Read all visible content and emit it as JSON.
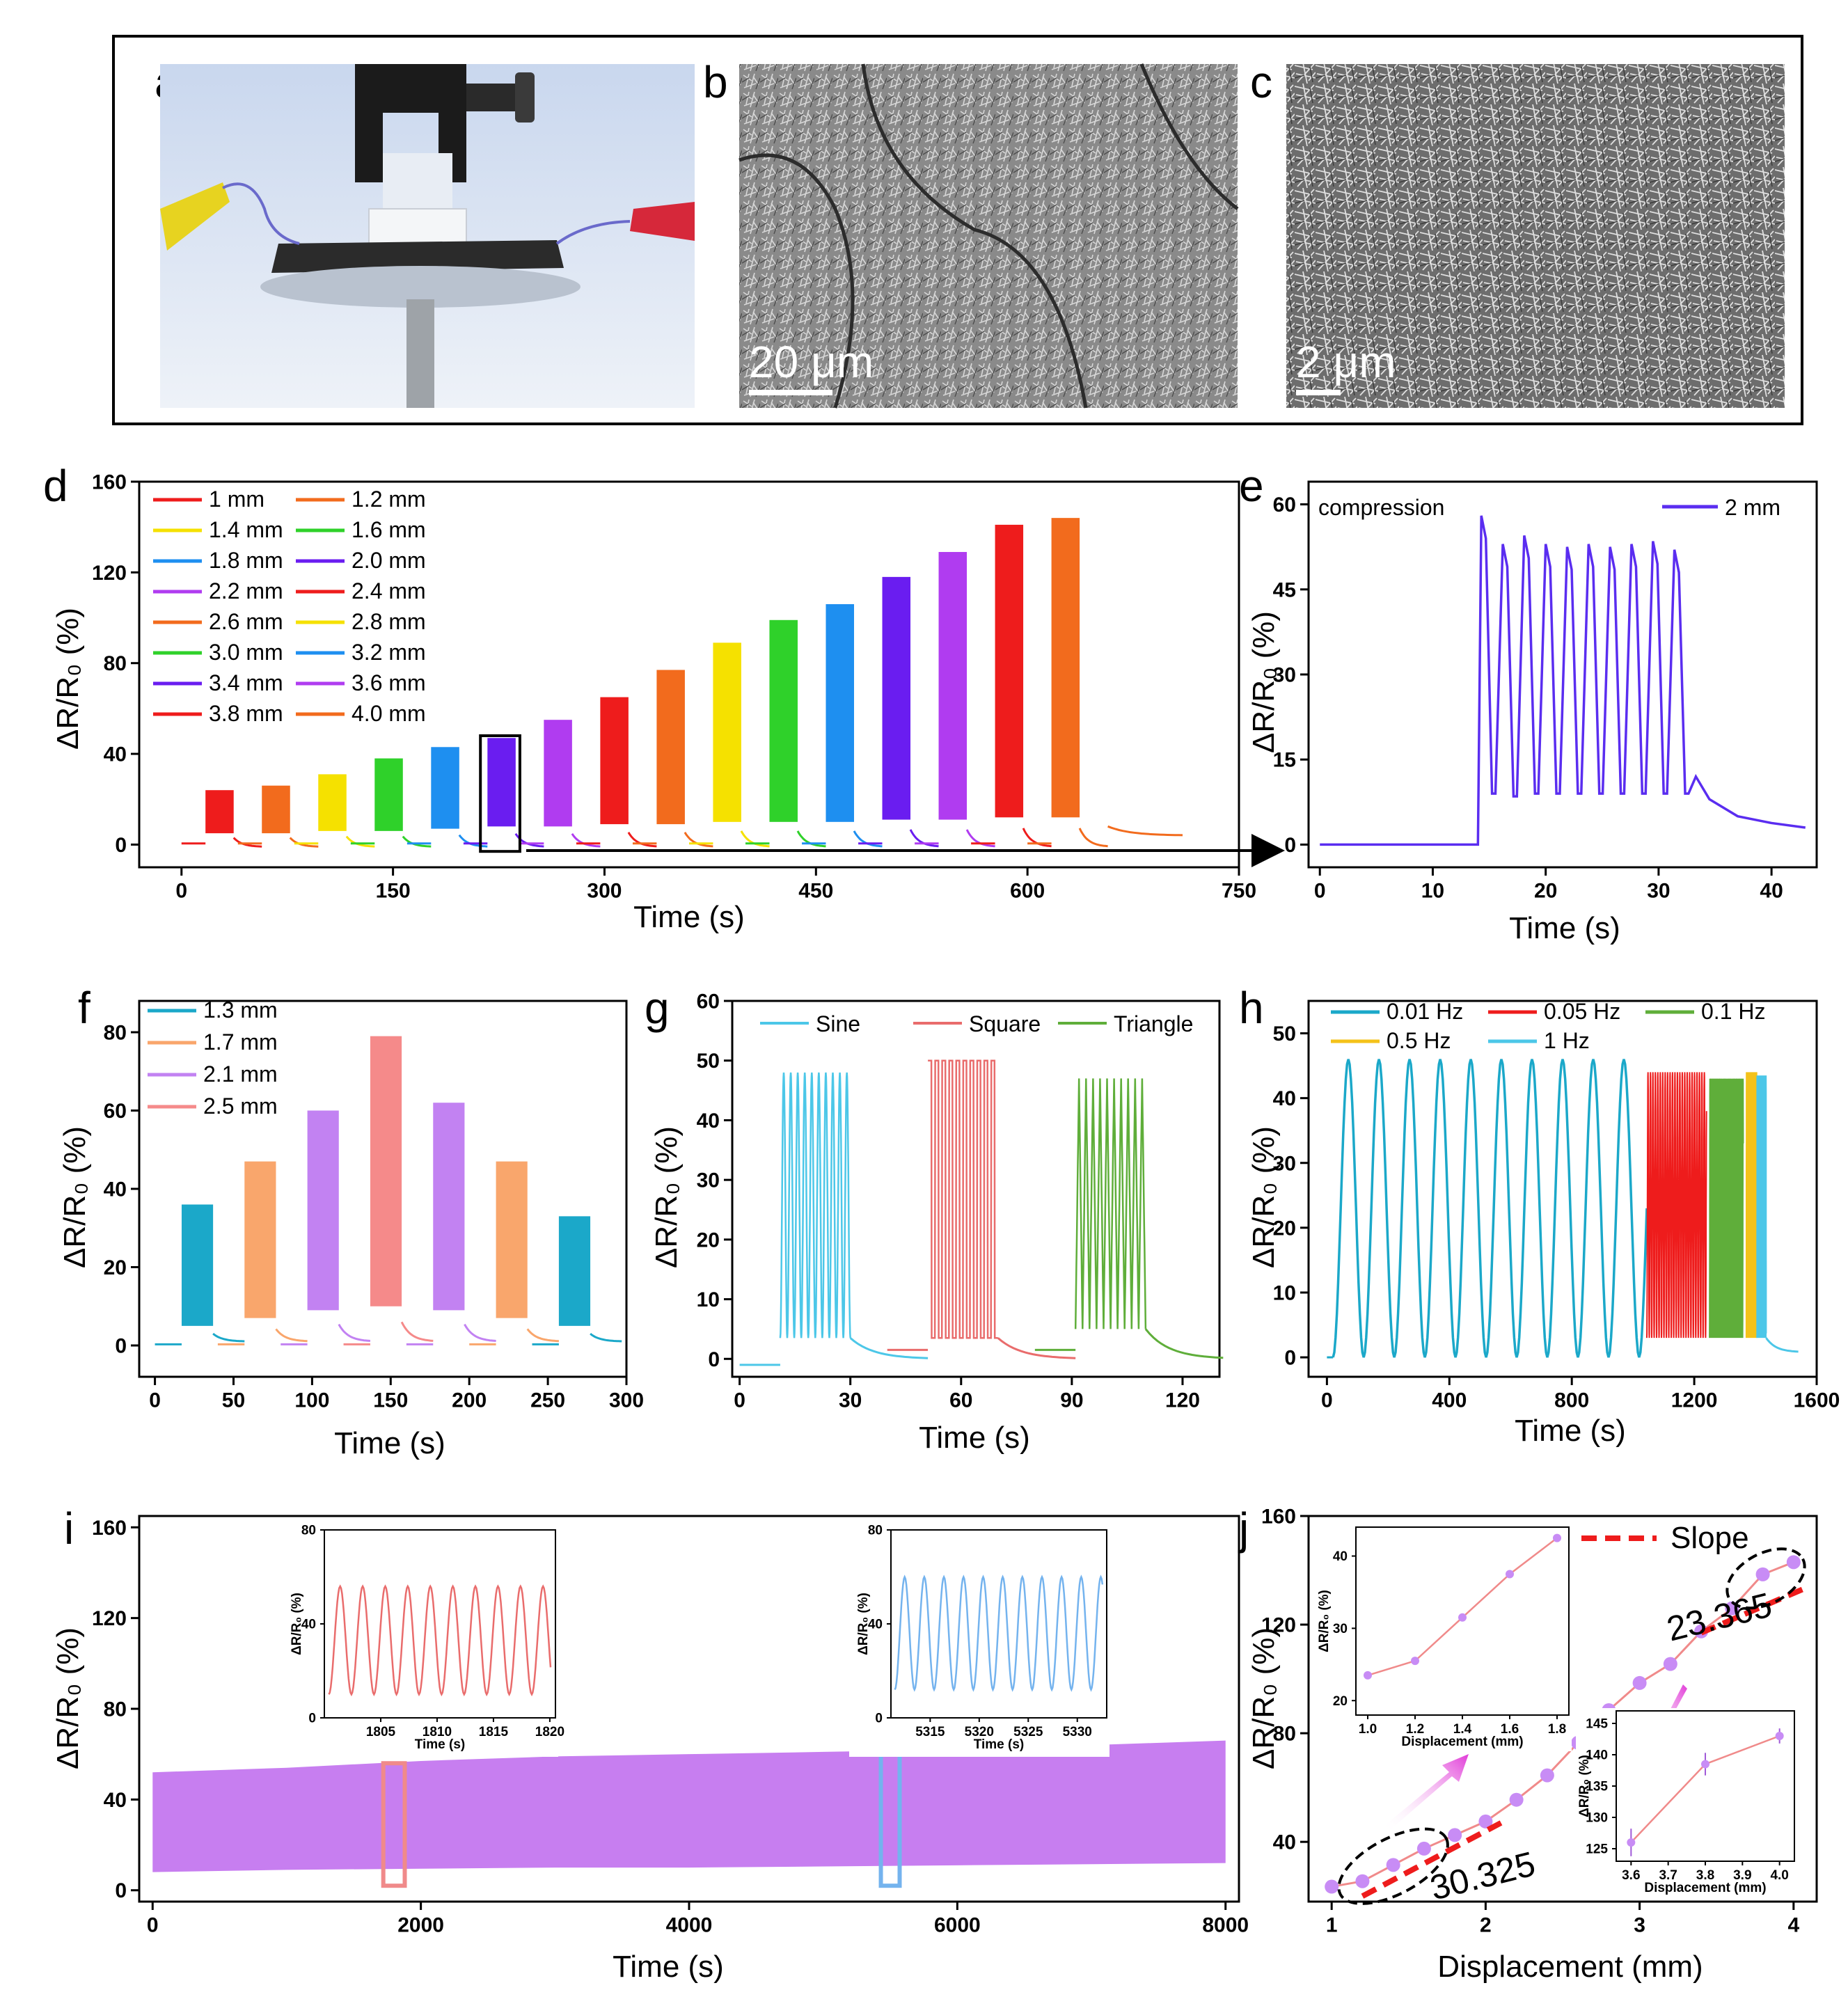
{
  "figure": {
    "panels": {
      "a": "a",
      "b": "b",
      "c": "c",
      "d": "d",
      "e": "e",
      "f": "f",
      "g": "g",
      "h": "h",
      "i": "i",
      "j": "j"
    },
    "scale_b": "20 μm",
    "scale_c": "2 μm",
    "ylabel": "ΔR/R₀ (%)",
    "colors": {
      "red": "#ee1c1c",
      "orange": "#f26b1d",
      "yellow": "#f5e100",
      "green": "#2fd12a",
      "blue": "#1e8ff0",
      "purple": "#6a1df0",
      "violet": "#b03cf0",
      "teal": "#1ba8c9",
      "salmon": "#f58a8a",
      "peach": "#f9a66c",
      "lavender": "#c282f2",
      "sky": "#4cc7e8",
      "olive": "#5fae3a",
      "gold": "#f4c21a",
      "inkblue": "#5a2df0",
      "lilac": "#c88cf5",
      "pink": "#e96c6c",
      "lightblue": "#74b3ee"
    }
  },
  "chart_data": [
    {
      "id": "d",
      "type": "line",
      "xlabel": "Time (s)",
      "ylabel": "ΔR/R₀ (%)",
      "xlim": [
        -30,
        750
      ],
      "ylim": [
        -10,
        160
      ],
      "xticks": [
        0,
        150,
        300,
        450,
        600,
        750
      ],
      "yticks": [
        0,
        40,
        80,
        120,
        160
      ],
      "legend": [
        "1 mm",
        "1.2 mm",
        "1.4 mm",
        "1.6 mm",
        "1.8 mm",
        "2.0 mm",
        "2.2 mm",
        "2.4 mm",
        "2.6 mm",
        "2.8 mm",
        "3.0 mm",
        "3.2 mm",
        "3.4 mm",
        "3.6 mm",
        "3.8 mm",
        "4.0 mm"
      ],
      "series_colors": [
        "red",
        "orange",
        "yellow",
        "green",
        "blue",
        "purple",
        "violet",
        "red",
        "orange",
        "yellow",
        "green",
        "blue",
        "purple",
        "violet",
        "red",
        "orange"
      ],
      "segment_start_s": [
        17,
        57,
        97,
        137,
        177,
        217,
        257,
        297,
        337,
        377,
        417,
        457,
        497,
        537,
        577,
        617
      ],
      "segment_peak": [
        24,
        26,
        31,
        38,
        43,
        47,
        55,
        65,
        77,
        89,
        99,
        106,
        118,
        129,
        141,
        144
      ],
      "segment_base": [
        5,
        5,
        6,
        6,
        7,
        8,
        8,
        9,
        9,
        10,
        10,
        10,
        11,
        11,
        12,
        12
      ]
    },
    {
      "id": "e",
      "type": "line",
      "legend_label": "2 mm",
      "annotation": "compression",
      "xlabel": "Time (s)",
      "ylabel": "ΔR/R₀ (%)",
      "xlim": [
        -1,
        44
      ],
      "ylim": [
        -4,
        64
      ],
      "xticks": [
        0,
        10,
        20,
        30,
        40
      ],
      "yticks": [
        0,
        15,
        30,
        45,
        60
      ],
      "cycle_peaks": [
        58,
        53,
        54.5,
        53,
        52.5,
        53,
        52.5,
        53,
        53.5,
        52
      ],
      "cycle_troughs": [
        9,
        8.5,
        9,
        9,
        9,
        9,
        9,
        9,
        9,
        9
      ]
    },
    {
      "id": "f",
      "type": "line",
      "xlabel": "Time (s)",
      "ylabel": "ΔR/R₀ (%)",
      "xlim": [
        -10,
        300
      ],
      "ylim": [
        -8,
        88
      ],
      "xticks": [
        0,
        50,
        100,
        150,
        200,
        250,
        300
      ],
      "yticks": [
        0,
        20,
        40,
        60,
        80
      ],
      "legend": [
        "1.3 mm",
        "1.7 mm",
        "2.1 mm",
        "2.5 mm"
      ],
      "segment_start_s": [
        17,
        57,
        97,
        137,
        177,
        217,
        257
      ],
      "segment_peak": [
        36,
        47,
        60,
        79,
        62,
        47,
        33
      ],
      "segment_base": [
        5,
        7,
        9,
        10,
        9,
        7,
        5
      ],
      "segment_colors": [
        "teal",
        "peach",
        "lavender",
        "salmon",
        "lavender",
        "peach",
        "teal"
      ]
    },
    {
      "id": "g",
      "type": "line",
      "xlabel": "Time (s)",
      "ylabel": "ΔR/R₀ (%)",
      "xlim": [
        -2,
        130
      ],
      "ylim": [
        -3,
        60
      ],
      "xticks": [
        0,
        30,
        60,
        90,
        120
      ],
      "yticks": [
        0,
        10,
        20,
        30,
        40,
        50,
        60
      ],
      "legend": [
        "Sine",
        "Square",
        "Triangle"
      ],
      "segment_start_s": [
        11,
        51,
        91
      ],
      "segment_peak": [
        48,
        50,
        47
      ],
      "segment_base": [
        3.5,
        3.5,
        5
      ]
    },
    {
      "id": "h",
      "type": "line",
      "xlabel": "Time (s)",
      "ylabel": "ΔR/R₀ (%)",
      "xlim": [
        -60,
        1600
      ],
      "ylim": [
        -3,
        55
      ],
      "xticks": [
        0,
        400,
        800,
        1200,
        1600
      ],
      "yticks": [
        0,
        10,
        20,
        30,
        40,
        50
      ],
      "legend": [
        "0.01 Hz",
        "0.05 Hz",
        "0.1 Hz",
        "0.5 Hz",
        "1 Hz"
      ],
      "segments_s": [
        [
          20,
          1045
        ],
        [
          1045,
          1240
        ],
        [
          1250,
          1360
        ],
        [
          1370,
          1405
        ],
        [
          1405,
          1435
        ]
      ],
      "segment_peak": [
        46,
        44,
        43,
        44,
        43.5
      ]
    },
    {
      "id": "i",
      "type": "area",
      "xlabel": "Time (s)",
      "ylabel": "ΔR/R₀ (%)",
      "xlim": [
        -100,
        8100
      ],
      "ylim": [
        -5,
        165
      ],
      "xticks": [
        0,
        2000,
        4000,
        6000,
        8000
      ],
      "yticks": [
        0,
        40,
        80,
        120,
        160
      ],
      "envelope_x": [
        0,
        1000,
        2000,
        3000,
        4000,
        5000,
        6000,
        7000,
        8000
      ],
      "envelope_top": [
        52,
        54,
        57,
        59,
        60,
        61,
        62,
        64,
        66
      ],
      "envelope_bottom": [
        8,
        9,
        9.5,
        10,
        10,
        10.5,
        11,
        11.5,
        12
      ],
      "inset1": {
        "xlabel": "Time (s)",
        "ylabel": "ΔR/R₀ (%)",
        "xticks": [
          1805,
          1810,
          1815,
          1820
        ],
        "xlim": [
          1800,
          1820.5
        ],
        "ylim": [
          0,
          80
        ],
        "peak": 56,
        "trough": 10
      },
      "inset2": {
        "xlabel": "Time (s)",
        "ylabel": "ΔR/R₀ (%)",
        "xticks": [
          5315,
          5320,
          5325,
          5330
        ],
        "xlim": [
          5311,
          5333
        ],
        "ylim": [
          0,
          80
        ],
        "peak": 60,
        "trough": 12
      }
    },
    {
      "id": "j",
      "type": "scatter",
      "xlabel": "Displacement (mm)",
      "ylabel": "ΔR/R₀ (%)",
      "xlim": [
        0.85,
        4.15
      ],
      "ylim": [
        18,
        160
      ],
      "xticks": [
        1,
        2,
        3,
        4
      ],
      "yticks": [
        40,
        80,
        120,
        160
      ],
      "x": [
        1.0,
        1.2,
        1.4,
        1.6,
        1.8,
        2.0,
        2.2,
        2.4,
        2.6,
        2.8,
        3.0,
        3.2,
        3.4,
        3.6,
        3.8,
        4.0
      ],
      "y": [
        23.5,
        25.5,
        31.5,
        37.5,
        42.5,
        47.5,
        55.5,
        64.5,
        76.5,
        88.5,
        98.5,
        105.5,
        117.5,
        126,
        138.5,
        143
      ],
      "legend": "Slope",
      "slope_low": "30.325",
      "slope_high": "23.365",
      "inset_low": {
        "xlabel": "Displacement (mm)",
        "ylabel": "ΔR/R₀ (%)",
        "x": [
          1.0,
          1.2,
          1.4,
          1.6,
          1.8
        ],
        "y": [
          23.5,
          25.5,
          31.5,
          37.5,
          42.5
        ],
        "xticks": [
          1.0,
          1.2,
          1.4,
          1.6,
          1.8
        ],
        "yticks": [
          20,
          30,
          40
        ]
      },
      "inset_high": {
        "xlabel": "Displacement (mm)",
        "ylabel": "ΔR/R₀ (%)",
        "x": [
          3.6,
          3.8,
          4.0
        ],
        "y": [
          126,
          138.5,
          143
        ],
        "err": [
          2.2,
          1.8,
          1.2
        ],
        "xticks": [
          3.6,
          3.7,
          3.8,
          3.9,
          4.0
        ],
        "yticks": [
          125,
          130,
          135,
          140,
          145
        ]
      }
    }
  ]
}
